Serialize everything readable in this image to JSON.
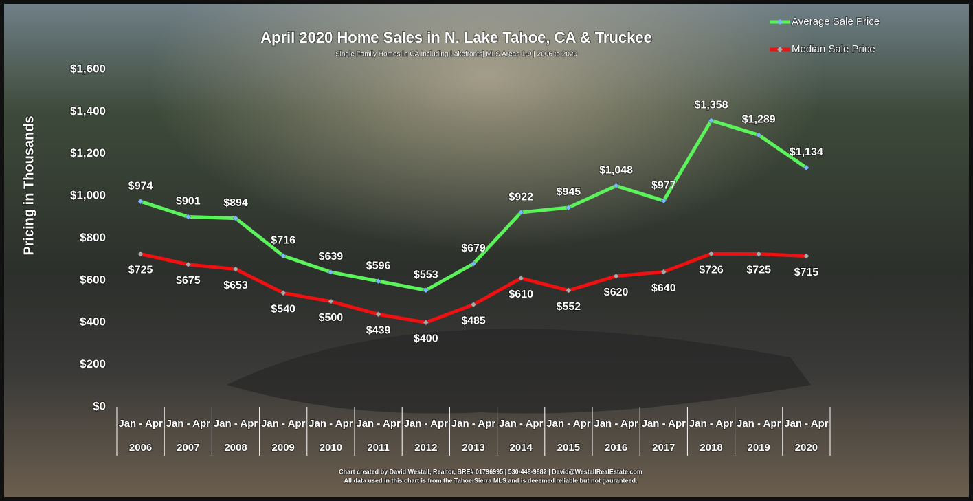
{
  "chart_data": {
    "type": "line",
    "title": "April 2020 Home Sales in N. Lake Tahoe, CA & Truckee",
    "subtitle": "Single Family Homes In CA Including Lakefronts| MLS Areas 1-9 | 2006 to 2020",
    "y_label": "Pricing in Thousands",
    "category_period": "Jan - Apr",
    "categories": [
      "2006",
      "2007",
      "2008",
      "2009",
      "2010",
      "2011",
      "2012",
      "2013",
      "2014",
      "2015",
      "2016",
      "2017",
      "2018",
      "2019",
      "2020"
    ],
    "series": [
      {
        "name": "Average Sale Price",
        "color": "#5cf25c",
        "values": [
          974,
          901,
          894,
          716,
          639,
          596,
          553,
          679,
          922,
          945,
          1048,
          977,
          1358,
          1289,
          1134
        ],
        "value_labels": [
          "$974",
          "$901",
          "$894",
          "$716",
          "$639",
          "$596",
          "$553",
          "$679",
          "$922",
          "$945",
          "$1,048",
          "$977",
          "$1,358",
          "$1,289",
          "$1,134"
        ]
      },
      {
        "name": "Median Sale Price",
        "color": "#ee1111",
        "values": [
          725,
          675,
          653,
          540,
          500,
          439,
          400,
          485,
          610,
          552,
          620,
          640,
          726,
          725,
          715
        ],
        "value_labels": [
          "$725",
          "$675",
          "$653",
          "$540",
          "$500",
          "$439",
          "$400",
          "$485",
          "$610",
          "$552",
          "$620",
          "$640",
          "$726",
          "$725",
          "$715"
        ]
      }
    ],
    "ylim": [
      0,
      1600
    ],
    "yticks": [
      {
        "value": 0,
        "label": "$0"
      },
      {
        "value": 200,
        "label": "$200"
      },
      {
        "value": 400,
        "label": "$400"
      },
      {
        "value": 600,
        "label": "$600"
      },
      {
        "value": 800,
        "label": "$800"
      },
      {
        "value": 1000,
        "label": "$1,000"
      },
      {
        "value": 1200,
        "label": "$1,200"
      },
      {
        "value": 1400,
        "label": "$1,400"
      },
      {
        "value": 1600,
        "label": "$1,600"
      }
    ],
    "grid": false,
    "legend": "top-right",
    "footnotes": [
      "Chart created by David Westall, Realtor, BRE# 01796995 | 530-448-9882 | David@WestallRealEstate.com",
      "All data used in this chart is from the Tahoe-Sierra MLS and is deeemed reliable but  not gauranteed."
    ]
  }
}
